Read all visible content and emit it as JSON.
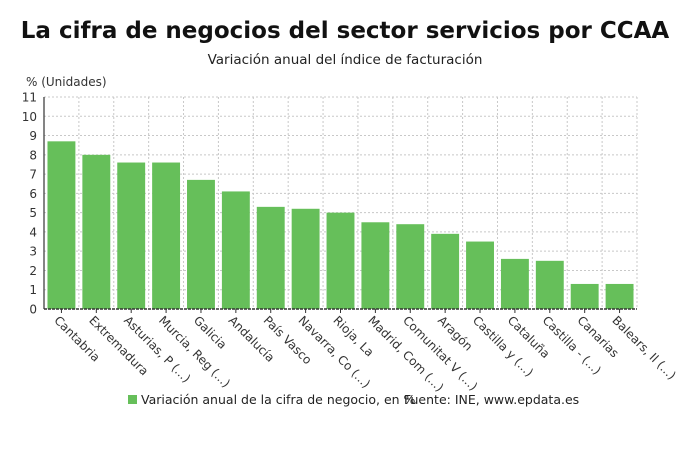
{
  "chart_data": {
    "type": "bar",
    "title": "La cifra de negocios del sector servicios por CCAA",
    "subtitle": "Variación anual del índice de facturación",
    "ylabel": "% (Unidades)",
    "xlabel": "",
    "ylim": [
      0,
      11
    ],
    "yticks": [
      0,
      1,
      2,
      3,
      4,
      5,
      6,
      7,
      8,
      9,
      10,
      11
    ],
    "grid": true,
    "categories": [
      "Cantabria",
      "Extremadura",
      "Asturias, P (...)",
      "Murcia, Reg (...)",
      "Galicia",
      "Andalucía",
      "País Vasco",
      "Navarra, Co (...)",
      "Rioja, La",
      "Madrid, Com (...)",
      "Comunitat V (...)",
      "Aragón",
      "Castilla y (...)",
      "Cataluña",
      "Castilla - (...)",
      "Canarias",
      "Balears, Il (...)"
    ],
    "series": [
      {
        "name": "Variación anual de la cifra de negocio, en %",
        "values": [
          8.7,
          8.0,
          7.6,
          7.6,
          6.7,
          6.1,
          5.3,
          5.2,
          5.0,
          4.5,
          4.4,
          3.9,
          3.5,
          2.6,
          2.5,
          1.3,
          1.3
        ],
        "color": "#66bf5a"
      }
    ],
    "legend_position": "bottom",
    "source": "Fuente: INE, www.epdata.es"
  }
}
